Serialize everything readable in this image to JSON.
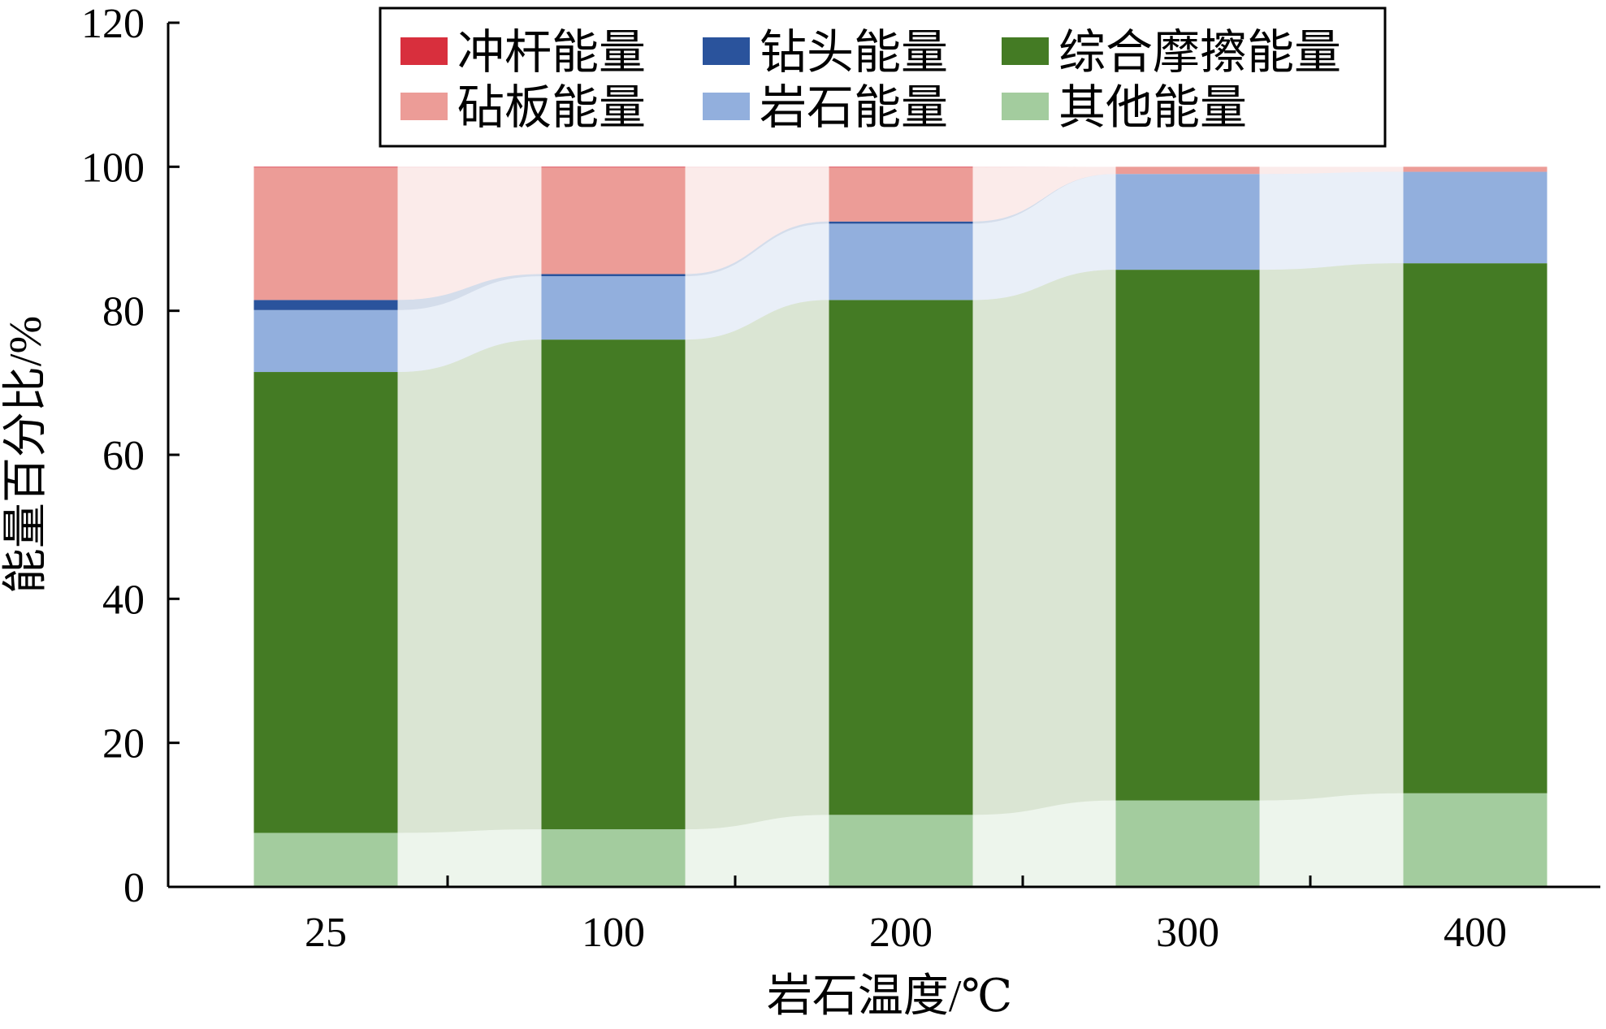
{
  "chart_data": {
    "type": "bar",
    "stacked": true,
    "categories": [
      "25",
      "100",
      "200",
      "300",
      "400"
    ],
    "xlabel": "岩石温度/℃",
    "ylabel": "能量百分比/%",
    "ylim": [
      0,
      120
    ],
    "yticks": [
      0,
      20,
      40,
      60,
      80,
      100,
      120
    ],
    "grid": false,
    "connector_bands": true,
    "legend_position": "top",
    "series": [
      {
        "name": "其他能量",
        "color": "#a3cc9e",
        "values": [
          7.5,
          8,
          10,
          12,
          13
        ]
      },
      {
        "name": "综合摩擦能量",
        "color": "#447b24",
        "values": [
          64,
          68,
          71.5,
          73.7,
          73.6
        ]
      },
      {
        "name": "岩石能量",
        "color": "#92afdd",
        "values": [
          8.6,
          8.8,
          10.6,
          13.3,
          12.7
        ]
      },
      {
        "name": "钻头能量",
        "color": "#2a539c",
        "values": [
          1.4,
          0.3,
          0.3,
          0,
          0
        ]
      },
      {
        "name": "砧板能量",
        "color": "#ec9c97",
        "values": [
          18.4,
          14.8,
          7.5,
          1.0,
          0.7
        ]
      },
      {
        "name": "冲杆能量",
        "color": "#d82f3d",
        "values": [
          0.1,
          0.1,
          0.1,
          0,
          0
        ]
      }
    ],
    "legend_order": [
      "冲杆能量",
      "钻头能量",
      "综合摩擦能量",
      "砧板能量",
      "岩石能量",
      "其他能量"
    ]
  }
}
